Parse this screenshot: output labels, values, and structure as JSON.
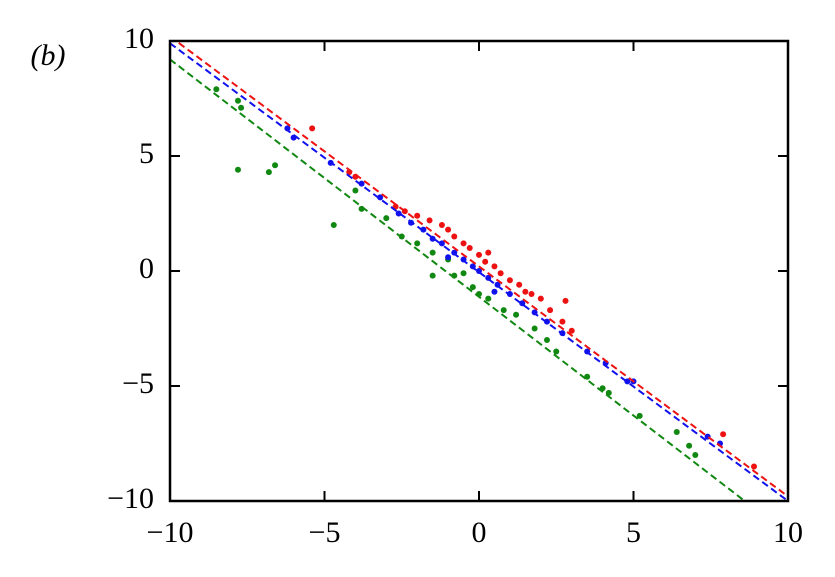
{
  "chart_data": {
    "type": "scatter",
    "panel_label": "(b)",
    "xlim": [
      -10,
      10
    ],
    "ylim": [
      -10,
      10
    ],
    "xticks": [
      {
        "value": -10,
        "label": "−10"
      },
      {
        "value": -5,
        "label": "−5"
      },
      0,
      5,
      10
    ],
    "yticks": [
      {
        "value": -10,
        "label": "−10"
      },
      {
        "value": -5,
        "label": "−5"
      },
      0,
      5,
      10
    ],
    "series": [
      {
        "color": "#ee1111",
        "x": [
          -5.4,
          -4.2,
          -4.0,
          -2.7,
          -2.4,
          -2.0,
          -1.6,
          -1.2,
          -0.8,
          -0.5,
          -0.3,
          0,
          0.2,
          0.5,
          0.7,
          1.0,
          1.3,
          1.7,
          2.0,
          2.3,
          2.8,
          2.7,
          3.0,
          7.9,
          8.9,
          -1.0,
          0.3,
          1.5
        ],
        "values": [
          6.2,
          4.3,
          4.1,
          2.8,
          2.6,
          2.4,
          2.2,
          2.0,
          1.5,
          1.2,
          1.0,
          0.7,
          0.4,
          0.2,
          -0.1,
          -0.4,
          -0.6,
          -1.0,
          -1.2,
          -1.7,
          -1.3,
          -2.2,
          -2.6,
          -7.1,
          -8.5,
          1.8,
          0.8,
          -0.9
        ]
      },
      {
        "color": "#118811",
        "x": [
          -8.5,
          -7.8,
          -7.7,
          -7.8,
          -6.8,
          -6.6,
          -4.7,
          -4.0,
          -3.8,
          -3.0,
          -2.5,
          -2.0,
          -1.5,
          -1.0,
          -0.8,
          -0.5,
          -0.2,
          0,
          0.3,
          0.8,
          1.2,
          1.8,
          2.2,
          2.5,
          3.5,
          4.0,
          4.2,
          5.2,
          6.4,
          6.8,
          7.0,
          -1.5
        ],
        "values": [
          7.9,
          7.4,
          7.1,
          4.4,
          4.3,
          4.6,
          2.0,
          3.5,
          2.7,
          2.3,
          1.5,
          1.2,
          0.8,
          0.5,
          -0.2,
          -0.1,
          -0.7,
          -1.0,
          -1.2,
          -1.7,
          -1.9,
          -2.5,
          -3.0,
          -3.5,
          -4.6,
          -5.1,
          -5.3,
          -6.3,
          -7.0,
          -7.6,
          -8.0,
          -0.2
        ]
      },
      {
        "color": "#1111ee",
        "x": [
          -6.2,
          -6.0,
          -4.8,
          -3.8,
          -3.2,
          -2.6,
          -2.2,
          -1.8,
          -1.5,
          -1.2,
          -0.8,
          -0.5,
          -0.2,
          0,
          0.3,
          0.6,
          1.0,
          1.4,
          1.8,
          2.2,
          2.7,
          3.5,
          4.1,
          4.8,
          5.0,
          7.4,
          7.8,
          -1.0,
          0.5
        ],
        "values": [
          6.2,
          5.8,
          4.7,
          3.8,
          3.2,
          2.5,
          2.1,
          1.8,
          1.4,
          1.2,
          0.8,
          0.5,
          0.2,
          0,
          -0.3,
          -0.6,
          -1.0,
          -1.4,
          -1.8,
          -2.2,
          -2.7,
          -3.5,
          -4.0,
          -4.8,
          -4.8,
          -7.2,
          -7.5,
          0.6,
          -0.9
        ]
      }
    ],
    "lines": [
      {
        "color": "#ee1111",
        "linestyle": "dashed",
        "x": [
          -10,
          10
        ],
        "values": [
          10.2,
          -9.8
        ]
      },
      {
        "color": "#1111ee",
        "linestyle": "dashed",
        "x": [
          -10,
          10
        ],
        "values": [
          9.9,
          -10
        ]
      },
      {
        "color": "#118811",
        "linestyle": "dashed",
        "x": [
          -10,
          8.6
        ],
        "values": [
          9.2,
          -10
        ]
      }
    ]
  }
}
